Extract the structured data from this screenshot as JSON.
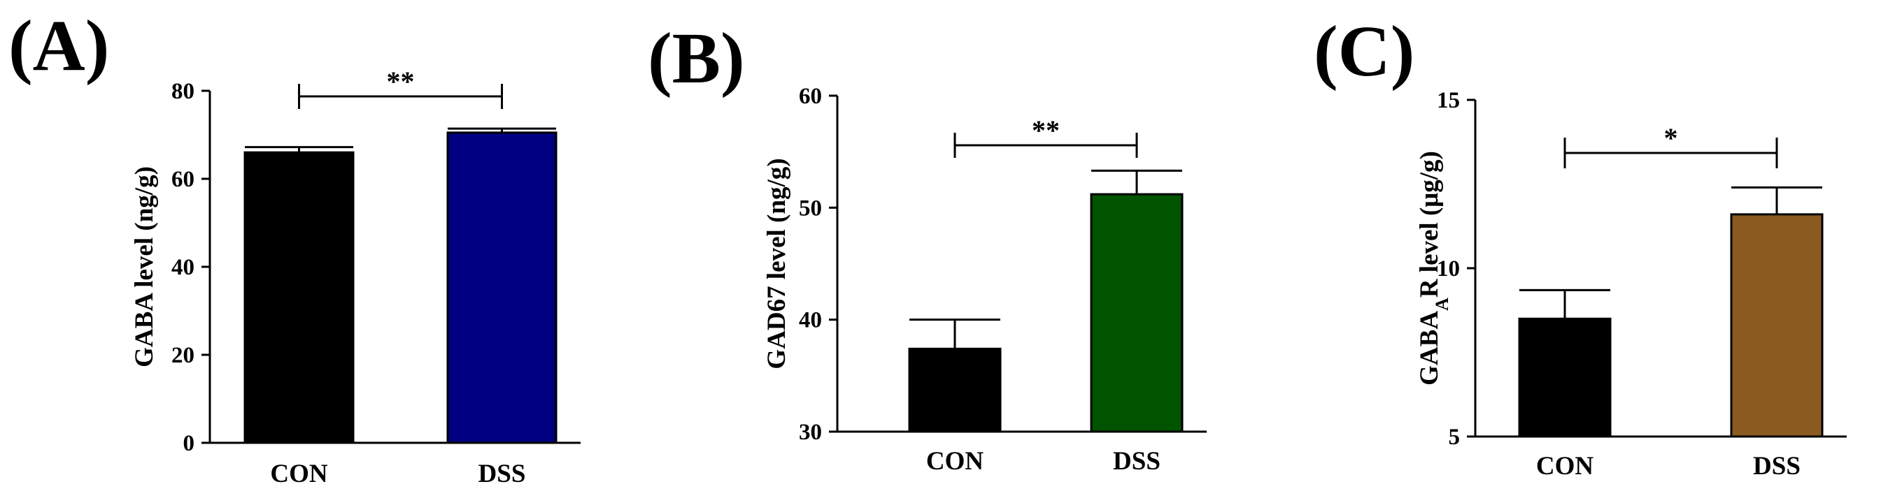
{
  "chart_data": [
    {
      "panel": "(A)",
      "type": "bar",
      "categories": [
        "CON",
        "DSS"
      ],
      "values": [
        66,
        70.5
      ],
      "errors": [
        1.2,
        0.9
      ],
      "colors": [
        "#000000",
        "#000080"
      ],
      "ylabel": "GABA level (ng/g)",
      "ylabel_sub": "",
      "ylabel_post": "",
      "ylim": [
        0,
        80
      ],
      "yticks": [
        "0",
        "20",
        "40",
        "60",
        "80"
      ],
      "significance": "**"
    },
    {
      "panel": "(B)",
      "type": "bar",
      "categories": [
        "CON",
        "DSS"
      ],
      "values": [
        37.4,
        51.2
      ],
      "errors": [
        2.6,
        2.1
      ],
      "colors": [
        "#000000",
        "#005400"
      ],
      "ylabel": "GAD67 level (ng/g)",
      "ylabel_sub": "",
      "ylabel_post": "",
      "ylim": [
        30,
        60
      ],
      "yticks": [
        "30",
        "40",
        "50",
        "60"
      ],
      "significance": "**"
    },
    {
      "panel": "(C)",
      "type": "bar",
      "categories": [
        "CON",
        "DSS"
      ],
      "values": [
        8.5,
        11.6
      ],
      "errors": [
        0.85,
        0.8
      ],
      "colors": [
        "#000000",
        "#8b5a21"
      ],
      "ylabel": "GABA",
      "ylabel_sub": "A",
      "ylabel_post": "R level (μg/g)",
      "ylim": [
        5,
        15
      ],
      "yticks": [
        "5",
        "10",
        "15"
      ],
      "significance": "*"
    }
  ]
}
